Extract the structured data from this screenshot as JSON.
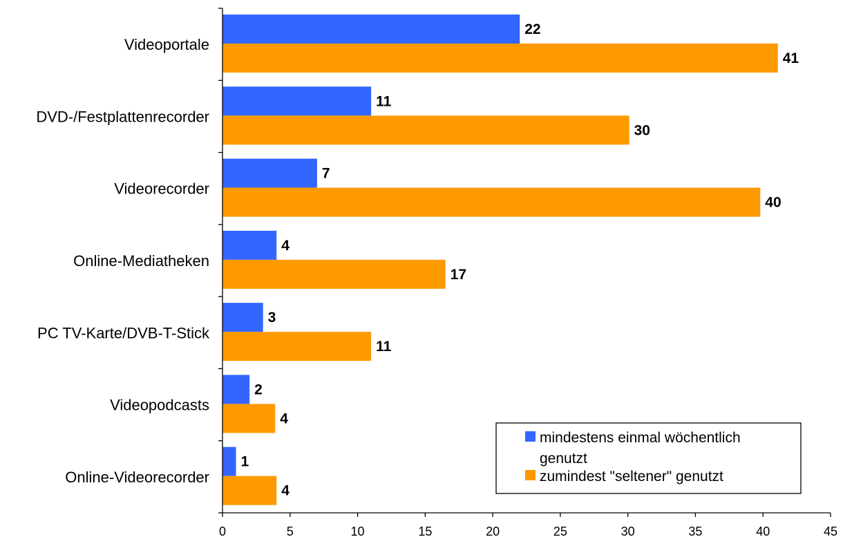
{
  "chart_data": {
    "type": "bar",
    "orientation": "horizontal",
    "categories": [
      "Videoportale",
      "DVD-/Festplattenrecorder",
      "Videorecorder",
      "Online-Mediatheken",
      "PC TV-Karte/DVB-T-Stick",
      "Videopodcasts",
      "Online-Videorecorder"
    ],
    "series": [
      {
        "name": "mindestens einmal wöchentlich genutzt",
        "color": "#3366ff",
        "values": [
          22,
          11,
          7,
          4,
          3,
          2,
          1
        ],
        "labels": [
          "22",
          "11",
          "7",
          "4",
          "3",
          "2",
          "1"
        ]
      },
      {
        "name": "zumindest \"seltener\" genutzt",
        "color": "#ff9900",
        "values": [
          41.1,
          30.1,
          39.8,
          16.5,
          11,
          3.9,
          4
        ],
        "labels": [
          "41",
          "30",
          "40",
          "17",
          "11",
          "4",
          "4"
        ]
      }
    ],
    "xlim": [
      0,
      45
    ],
    "xticks": [
      0,
      5,
      10,
      15,
      20,
      25,
      30,
      35,
      40,
      45
    ],
    "title": "",
    "xlabel": "",
    "ylabel": "",
    "grid": false,
    "legend_position": "bottom-right"
  }
}
